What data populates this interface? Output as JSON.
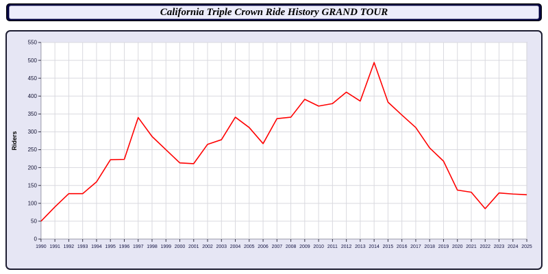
{
  "title": "California Triple Crown Ride History GRAND TOUR",
  "colors": {
    "line": "#ff0000",
    "panel_bg": "#e6e6f4",
    "title_bar_bg": "#000040",
    "plot_bg": "#ffffff",
    "grid": "#d9d9df"
  },
  "chart_data": {
    "type": "line",
    "title": "California Triple Crown Ride History GRAND TOUR",
    "xlabel": "",
    "ylabel": "Riders",
    "ylim": [
      0,
      550
    ],
    "ytick_step": 50,
    "grid": true,
    "legend_position": "none",
    "x": [
      1990,
      1991,
      1992,
      1993,
      1994,
      1995,
      1996,
      1997,
      1998,
      1999,
      2000,
      2001,
      2002,
      2003,
      2004,
      2005,
      2006,
      2007,
      2008,
      2009,
      2010,
      2011,
      2012,
      2013,
      2014,
      2015,
      2016,
      2017,
      2018,
      2019,
      2020,
      2021,
      2022,
      2023,
      2024,
      2025
    ],
    "series": [
      {
        "name": "Riders",
        "color": "#ff0000",
        "values": [
          50,
          90,
          127,
          127,
          160,
          222,
          223,
          340,
          287,
          250,
          213,
          211,
          265,
          278,
          341,
          312,
          267,
          337,
          341,
          391,
          372,
          379,
          411,
          386,
          494,
          383,
          347,
          312,
          255,
          218,
          137,
          131,
          85,
          129,
          126,
          124
        ]
      }
    ]
  }
}
